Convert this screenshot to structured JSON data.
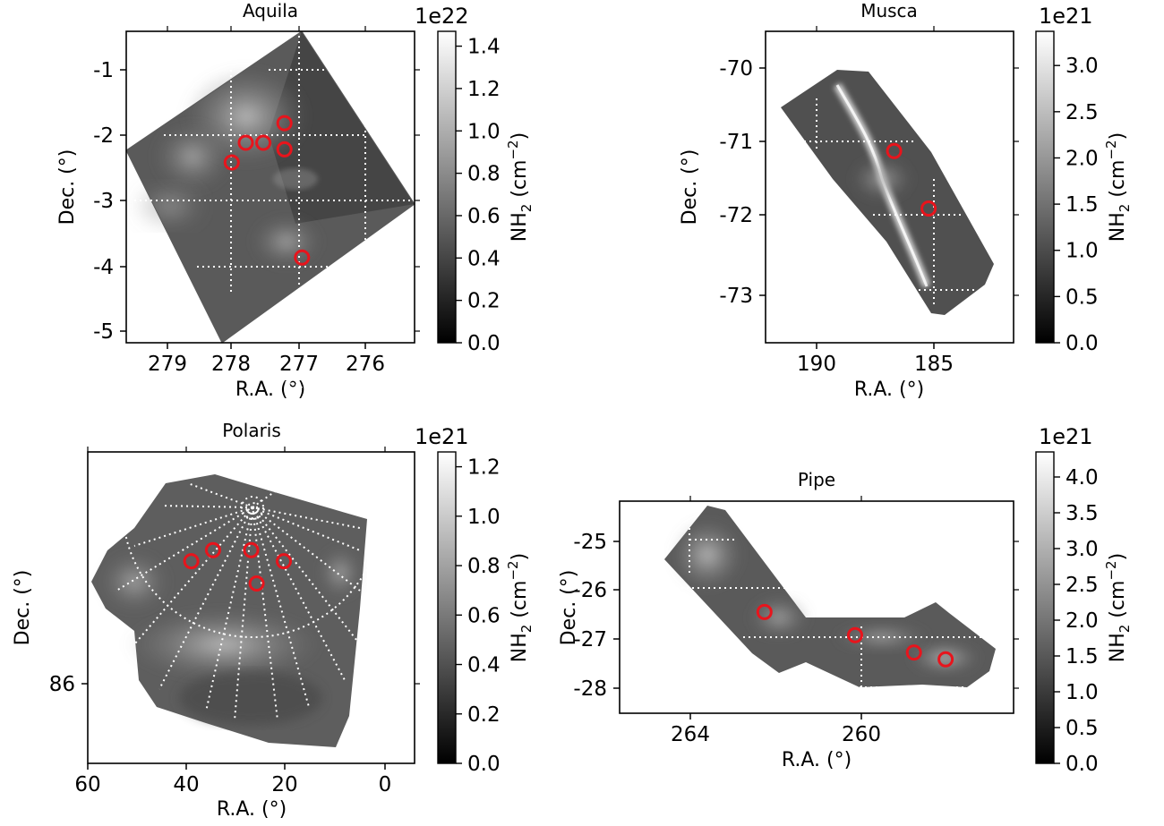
{
  "chart_data": [
    {
      "type": "heatmap",
      "title": "Aquila",
      "xlabel": "R.A. (°)",
      "ylabel": "Dec. (°)",
      "x_ticks": [
        "279",
        "278",
        "277",
        "276"
      ],
      "y_ticks": [
        "-1",
        "-2",
        "-3",
        "-4",
        "-5"
      ],
      "xlim": [
        279.5,
        275.4
      ],
      "ylim": [
        -5.15,
        -0.4
      ],
      "colorbar": {
        "label": "NH",
        "sub": "2",
        "unit": " (cm",
        "exp": "−2",
        "close": ")",
        "exponent": "1e22",
        "ticks": [
          "0.0",
          "0.2",
          "0.4",
          "0.6",
          "0.8",
          "1.0",
          "1.2",
          "1.4"
        ],
        "range": [
          0,
          1.47
        ]
      },
      "markers": [
        {
          "ra": 277.25,
          "dec": -1.8
        },
        {
          "ra": 277.55,
          "dec": -2.1
        },
        {
          "ra": 277.8,
          "dec": -2.1
        },
        {
          "ra": 277.25,
          "dec": -2.2
        },
        {
          "ra": 278.0,
          "dec": -2.4
        },
        {
          "ra": 277.0,
          "dec": -3.85
        }
      ],
      "marker_color": "#e8141c"
    },
    {
      "type": "heatmap",
      "title": "Musca",
      "xlabel": "R.A. (°)",
      "ylabel": "Dec. (°)",
      "x_ticks": [
        "190",
        "185"
      ],
      "y_ticks": [
        "-70",
        "-71",
        "-72",
        "-73"
      ],
      "xlim": [
        193.0,
        182.2
      ],
      "ylim": [
        -73.58,
        -69.52
      ],
      "colorbar": {
        "label": "NH",
        "sub": "2",
        "unit": " (cm",
        "exp": "−2",
        "close": ")",
        "exponent": "1e21",
        "ticks": [
          "0.0",
          "0.5",
          "1.0",
          "1.5",
          "2.0",
          "2.5",
          "3.0"
        ],
        "range": [
          0,
          3.37
        ]
      },
      "markers": [
        {
          "ra": 187.4,
          "dec": -71.08
        },
        {
          "ra": 185.9,
          "dec": -71.83
        }
      ],
      "marker_color": "#e8141c"
    },
    {
      "type": "heatmap",
      "title": "Polaris",
      "xlabel": "R.A. (°)",
      "ylabel": "Dec. (°)",
      "x_ticks": [
        "60",
        "40",
        "20",
        "0"
      ],
      "y_ticks": [
        "86"
      ],
      "colorbar": {
        "label": "NH",
        "sub": "2",
        "unit": " (cm",
        "exp": "−2",
        "close": ")",
        "exponent": "1e21",
        "ticks": [
          "0.0",
          "0.2",
          "0.4",
          "0.6",
          "0.8",
          "1.0",
          "1.2"
        ],
        "range": [
          0,
          1.26
        ]
      },
      "markers": [
        {
          "ra": 41,
          "dec": 86.55
        },
        {
          "ra": 37,
          "dec": 86.6
        },
        {
          "ra": 30,
          "dec": 86.6
        },
        {
          "ra": 24,
          "dec": 86.55
        },
        {
          "ra": 29,
          "dec": 86.45
        }
      ],
      "marker_color": "#e8141c"
    },
    {
      "type": "heatmap",
      "title": "Pipe",
      "xlabel": "R.A. (°)",
      "ylabel": "Dec. (°)",
      "x_ticks": [
        "264",
        "260"
      ],
      "y_ticks": [
        "-25",
        "-26",
        "-27",
        "-28"
      ],
      "xlim": [
        265.2,
        256.5
      ],
      "ylim": [
        -28.5,
        -24.1
      ],
      "colorbar": {
        "label": "NH",
        "sub": "2",
        "unit": " (cm",
        "exp": "−2",
        "close": ")",
        "exponent": "1e21",
        "ticks": [
          "0.0",
          "0.5",
          "1.0",
          "1.5",
          "2.0",
          "2.5",
          "3.0",
          "3.5",
          "4.0"
        ],
        "range": [
          0,
          4.35
        ]
      },
      "markers": [
        {
          "ra": 262.0,
          "dec": -26.4
        },
        {
          "ra": 260.0,
          "dec": -26.88
        },
        {
          "ra": 258.7,
          "dec": -27.24
        },
        {
          "ra": 258.0,
          "dec": -27.38
        }
      ],
      "marker_color": "#e8141c"
    }
  ]
}
